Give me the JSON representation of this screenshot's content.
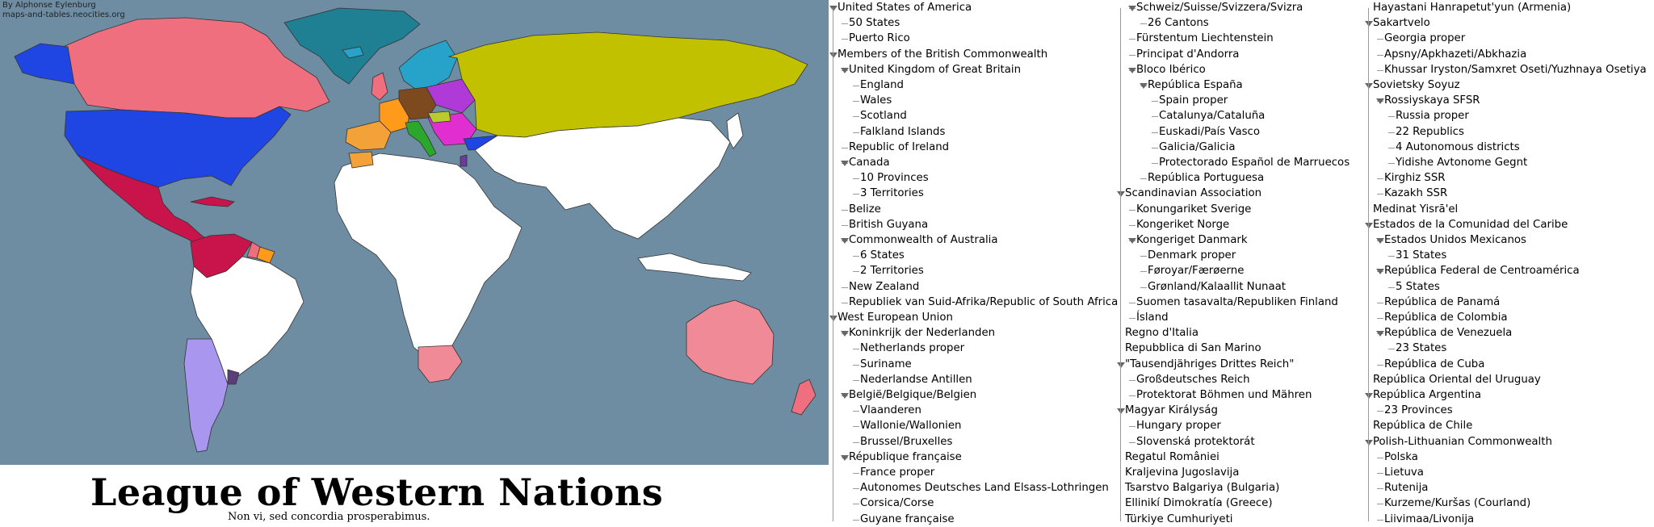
{
  "map": {
    "credit_line1": "By Alphonse Eylenburg",
    "credit_line2": "maps-and-tables.neocities.org",
    "title": "League of Western Nations",
    "motto": "Non vi, sed concordia prosperabimus.",
    "colors": {
      "ocean": "#6e8da3",
      "unaffiliated": "#ffffff",
      "usa": "#1f46e3",
      "commonwealth": "#f06f7f",
      "australia": "#f08a96",
      "west_european_union": "#ff9a1a",
      "swiss": "#2aa5cf",
      "iberian_bloc": "#f3a23a",
      "scandinavia": "#27a3c9",
      "reich": "#7c4a1e",
      "magyar": "#b9cc2c",
      "italy": "#2ba82b",
      "balkans": "#e12ed1",
      "soviet": "#c2c100",
      "caribbean": "#c8144a",
      "argentina": "#a996ef",
      "greenland": "#1f7f93"
    }
  },
  "tree": [
    {
      "label": "United States of America",
      "level": 0,
      "col": 0,
      "expanded": true
    },
    {
      "label": "50 States",
      "level": 1,
      "col": 0
    },
    {
      "label": "Puerto Rico",
      "level": 1,
      "col": 0
    },
    {
      "label": "Members of the British Commonwealth",
      "level": 0,
      "col": 0,
      "expanded": true
    },
    {
      "label": "United Kingdom of Great Britain",
      "level": 1,
      "col": 0,
      "expanded": true
    },
    {
      "label": "England",
      "level": 2,
      "col": 0
    },
    {
      "label": "Wales",
      "level": 2,
      "col": 0
    },
    {
      "label": "Scotland",
      "level": 2,
      "col": 0
    },
    {
      "label": "Falkland Islands",
      "level": 2,
      "col": 0
    },
    {
      "label": "Republic of Ireland",
      "level": 1,
      "col": 0
    },
    {
      "label": "Canada",
      "level": 1,
      "col": 0,
      "expanded": true
    },
    {
      "label": "10 Provinces",
      "level": 2,
      "col": 0
    },
    {
      "label": "3 Territories",
      "level": 2,
      "col": 0
    },
    {
      "label": "Belize",
      "level": 1,
      "col": 0
    },
    {
      "label": "British Guyana",
      "level": 1,
      "col": 0
    },
    {
      "label": "Commonwealth of Australia",
      "level": 1,
      "col": 0,
      "expanded": true
    },
    {
      "label": "6 States",
      "level": 2,
      "col": 0
    },
    {
      "label": "2 Territories",
      "level": 2,
      "col": 0
    },
    {
      "label": "New Zealand",
      "level": 1,
      "col": 0
    },
    {
      "label": "Republiek van Suid-Afrika/Republic of South Africa",
      "level": 1,
      "col": 0
    },
    {
      "label": "West European Union",
      "level": 0,
      "col": 0,
      "expanded": true
    },
    {
      "label": "Koninkrijk der Nederlanden",
      "level": 1,
      "col": 0,
      "expanded": true
    },
    {
      "label": "Netherlands proper",
      "level": 2,
      "col": 0
    },
    {
      "label": "Suriname",
      "level": 2,
      "col": 0
    },
    {
      "label": "Nederlandse Antillen",
      "level": 2,
      "col": 0
    },
    {
      "label": "België/Belgique/Belgien",
      "level": 1,
      "col": 0,
      "expanded": true
    },
    {
      "label": "Vlaanderen",
      "level": 2,
      "col": 0
    },
    {
      "label": "Wallonie/Wallonien",
      "level": 2,
      "col": 0
    },
    {
      "label": "Brussel/Bruxelles",
      "level": 2,
      "col": 0
    },
    {
      "label": "République française",
      "level": 1,
      "col": 0,
      "expanded": true
    },
    {
      "label": "France proper",
      "level": 2,
      "col": 0
    },
    {
      "label": "Autonomes Deutsches Land Elsass-Lothringen",
      "level": 2,
      "col": 0
    },
    {
      "label": "Corsica/Corse",
      "level": 2,
      "col": 0
    },
    {
      "label": "Guyane française",
      "level": 2,
      "col": 0
    },
    {
      "label": "Schweiz/Suisse/Svizzera/Svizra",
      "level": 1,
      "col": 1,
      "expanded": true
    },
    {
      "label": "26 Cantons",
      "level": 2,
      "col": 1
    },
    {
      "label": "Fürstentum Liechtenstein",
      "level": 1,
      "col": 1
    },
    {
      "label": "Principat d'Andorra",
      "level": 1,
      "col": 1
    },
    {
      "label": "Bloco Ibérico",
      "level": 1,
      "col": 1,
      "expanded": true
    },
    {
      "label": "República España",
      "level": 2,
      "col": 1,
      "expanded": true
    },
    {
      "label": "Spain proper",
      "level": 3,
      "col": 1
    },
    {
      "label": "Catalunya/Cataluña",
      "level": 3,
      "col": 1
    },
    {
      "label": "Euskadi/País Vasco",
      "level": 3,
      "col": 1
    },
    {
      "label": "Galicia/Galicia",
      "level": 3,
      "col": 1
    },
    {
      "label": "Protectorado Español de Marruecos",
      "level": 3,
      "col": 1
    },
    {
      "label": "República Portuguesa",
      "level": 2,
      "col": 1
    },
    {
      "label": "Scandinavian Association",
      "level": 0,
      "col": 1,
      "expanded": true
    },
    {
      "label": "Konungariket Sverige",
      "level": 1,
      "col": 1
    },
    {
      "label": "Kongeriket Norge",
      "level": 1,
      "col": 1
    },
    {
      "label": "Kongeriget Danmark",
      "level": 1,
      "col": 1,
      "expanded": true
    },
    {
      "label": "Denmark proper",
      "level": 2,
      "col": 1
    },
    {
      "label": "Føroyar/Færøerne",
      "level": 2,
      "col": 1
    },
    {
      "label": "Grønland/Kalaallit Nunaat",
      "level": 2,
      "col": 1
    },
    {
      "label": "Suomen tasavalta/Republiken Finland",
      "level": 1,
      "col": 1
    },
    {
      "label": "Ísland",
      "level": 1,
      "col": 1
    },
    {
      "label": "Regno d'Italia",
      "level": 0,
      "col": 1
    },
    {
      "label": "Repubblica di San Marino",
      "level": 0,
      "col": 1
    },
    {
      "label": "\"Tausendjähriges Drittes Reich\"",
      "level": 0,
      "col": 1,
      "expanded": true
    },
    {
      "label": "Großdeutsches Reich",
      "level": 1,
      "col": 1
    },
    {
      "label": "Protektorat Böhmen und Mähren",
      "level": 1,
      "col": 1
    },
    {
      "label": "Magyar Királyság",
      "level": 0,
      "col": 1,
      "expanded": true
    },
    {
      "label": "Hungary proper",
      "level": 1,
      "col": 1
    },
    {
      "label": "Slovenská protektorát",
      "level": 1,
      "col": 1
    },
    {
      "label": "Regatul României",
      "level": 0,
      "col": 1
    },
    {
      "label": "Kraljevina Jugoslavija",
      "level": 0,
      "col": 1
    },
    {
      "label": "Tsarstvo Balgariya (Bulgaria)",
      "level": 0,
      "col": 1
    },
    {
      "label": "Ellinikí Dimokratía (Greece)",
      "level": 0,
      "col": 1
    },
    {
      "label": "Türkiye Cumhuriyeti",
      "level": 0,
      "col": 1
    },
    {
      "label": "Hayastani Hanrapetut'yun (Armenia)",
      "level": 0,
      "col": 2
    },
    {
      "label": "Sakartvelo",
      "level": 0,
      "col": 2,
      "expanded": true
    },
    {
      "label": "Georgia proper",
      "level": 1,
      "col": 2
    },
    {
      "label": "Apsny/Apkhazeti/Abkhazia",
      "level": 1,
      "col": 2
    },
    {
      "label": "Khussar Iryston/Samxret Oseti/Yuzhnaya Osetiya",
      "level": 1,
      "col": 2
    },
    {
      "label": "Sovietsky Soyuz",
      "level": 0,
      "col": 2,
      "expanded": true
    },
    {
      "label": "Rossiyskaya SFSR",
      "level": 1,
      "col": 2,
      "expanded": true
    },
    {
      "label": "Russia proper",
      "level": 2,
      "col": 2
    },
    {
      "label": "22 Republics",
      "level": 2,
      "col": 2
    },
    {
      "label": "4 Autonomous districts",
      "level": 2,
      "col": 2
    },
    {
      "label": "Yidishe Avtonome Gegnt",
      "level": 2,
      "col": 2
    },
    {
      "label": "Kirghiz SSR",
      "level": 1,
      "col": 2
    },
    {
      "label": "Kazakh SSR",
      "level": 1,
      "col": 2
    },
    {
      "label": "Medinat Yisrā'el",
      "level": 0,
      "col": 2
    },
    {
      "label": "Estados de la Comunidad del Caribe",
      "level": 0,
      "col": 2,
      "expanded": true
    },
    {
      "label": "Estados Unidos Mexicanos",
      "level": 1,
      "col": 2,
      "expanded": true
    },
    {
      "label": "31 States",
      "level": 2,
      "col": 2
    },
    {
      "label": "República Federal de Centroamérica",
      "level": 1,
      "col": 2,
      "expanded": true
    },
    {
      "label": "5 States",
      "level": 2,
      "col": 2
    },
    {
      "label": "República de Panamá",
      "level": 1,
      "col": 2
    },
    {
      "label": "República de Colombia",
      "level": 1,
      "col": 2
    },
    {
      "label": "República de Venezuela",
      "level": 1,
      "col": 2,
      "expanded": true
    },
    {
      "label": "23 States",
      "level": 2,
      "col": 2
    },
    {
      "label": "República de Cuba",
      "level": 1,
      "col": 2
    },
    {
      "label": "República Oriental del Uruguay",
      "level": 0,
      "col": 2
    },
    {
      "label": "República Argentina",
      "level": 0,
      "col": 2,
      "expanded": true
    },
    {
      "label": "23 Provinces",
      "level": 1,
      "col": 2
    },
    {
      "label": "República de Chile",
      "level": 0,
      "col": 2
    },
    {
      "label": "Polish-Lithuanian Commonwealth",
      "level": 0,
      "col": 2,
      "expanded": true
    },
    {
      "label": "Polska",
      "level": 1,
      "col": 2
    },
    {
      "label": "Lietuva",
      "level": 1,
      "col": 2
    },
    {
      "label": "Rutenija",
      "level": 1,
      "col": 2
    },
    {
      "label": "Kurzeme/Kuršas (Courland)",
      "level": 1,
      "col": 2
    },
    {
      "label": "Liivimaa/Livonija",
      "level": 1,
      "col": 2
    }
  ]
}
